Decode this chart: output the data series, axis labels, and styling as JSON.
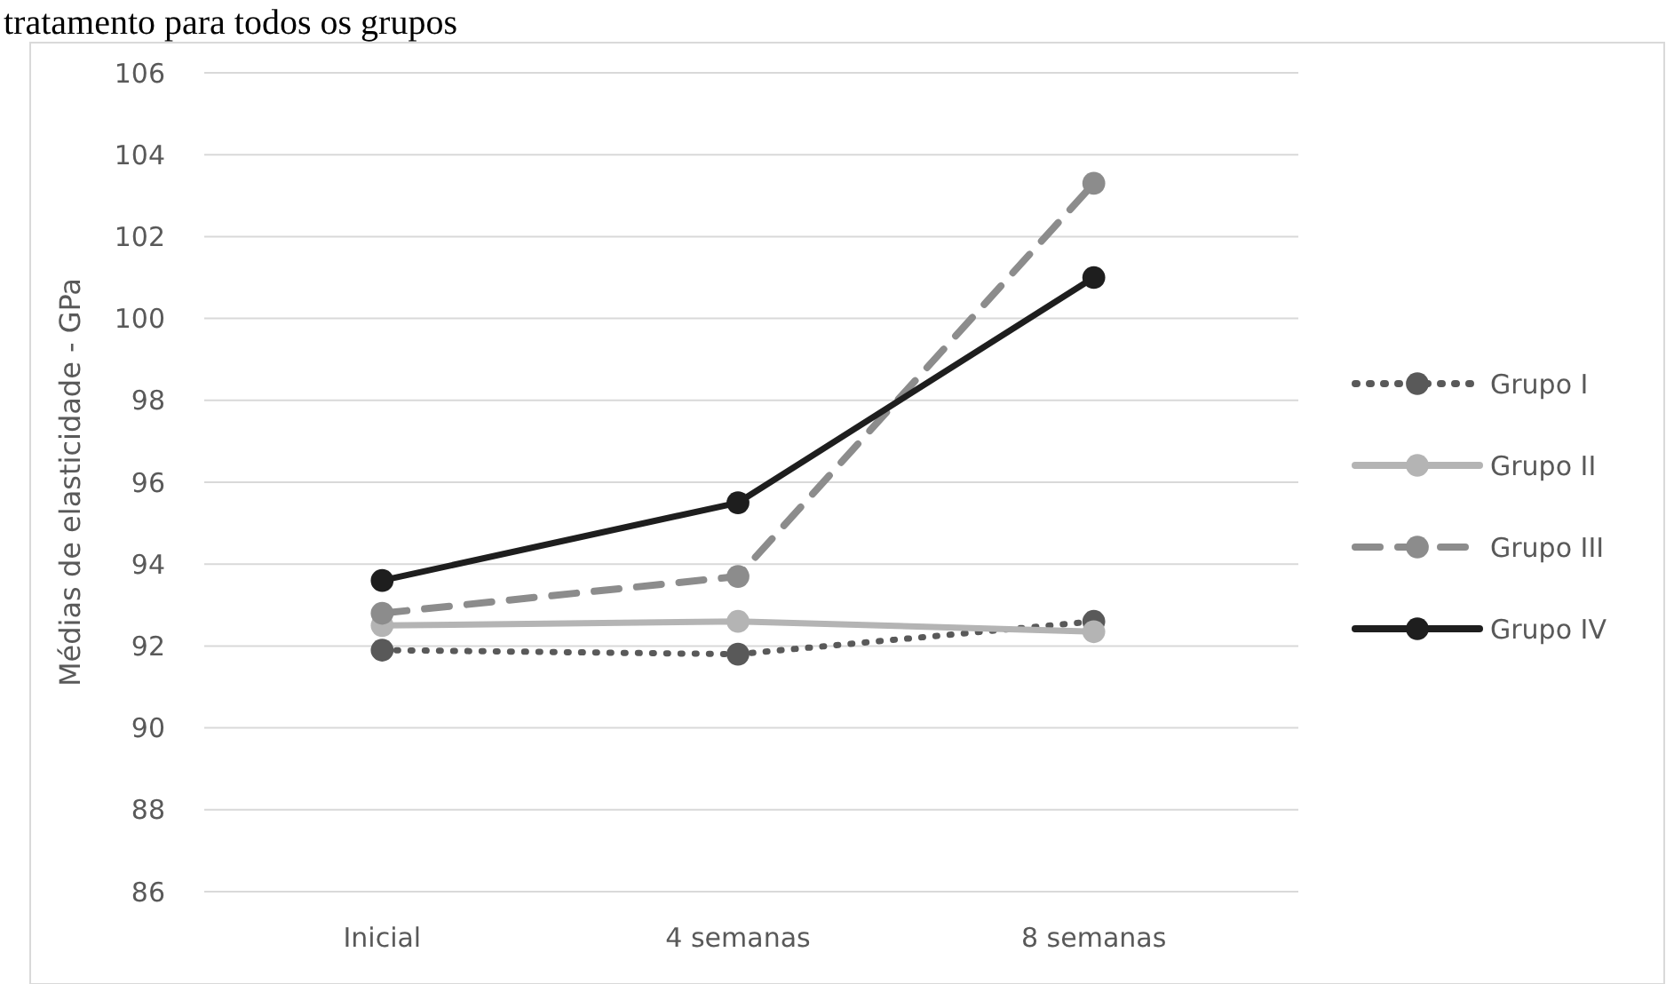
{
  "chart_data": {
    "type": "line",
    "title": "tratamento para todos os grupos",
    "ylabel": "Médias de elasticidade - GPa",
    "categories": [
      "Inicial",
      "4 semanas",
      "8 semanas"
    ],
    "series": [
      {
        "name": "Grupo I",
        "color": "#595959",
        "line_style": "dotted",
        "values": [
          91.9,
          91.8,
          92.6
        ]
      },
      {
        "name": "Grupo II",
        "color": "#b4b4b4",
        "line_style": "solid",
        "values": [
          92.5,
          92.6,
          92.35
        ]
      },
      {
        "name": "Grupo III",
        "color": "#8c8c8c",
        "line_style": "dashed",
        "values": [
          92.8,
          93.7,
          103.3
        ]
      },
      {
        "name": "Grupo IV",
        "color": "#1e1e1e",
        "line_style": "solid",
        "values": [
          93.6,
          95.5,
          101.0
        ]
      }
    ],
    "ylim": [
      86,
      106
    ],
    "yticks": [
      86,
      88,
      90,
      92,
      94,
      96,
      98,
      100,
      102,
      104,
      106
    ],
    "grid": "y",
    "legend": "right",
    "marker": "circle"
  }
}
